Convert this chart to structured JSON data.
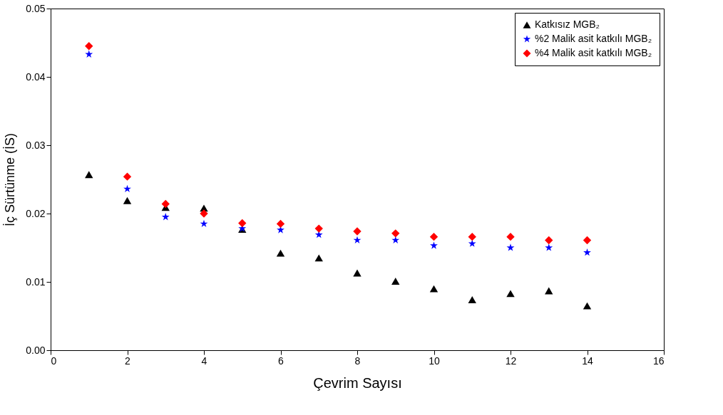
{
  "chart_data": {
    "type": "scatter",
    "xlabel": "Çevrim Sayısı",
    "ylabel": "İç Sürtünme (İS)",
    "x": [
      1,
      2,
      3,
      4,
      5,
      6,
      7,
      8,
      9,
      10,
      11,
      12,
      13,
      14
    ],
    "series": [
      {
        "name": "Katkısız MGB₂",
        "color": "#000000",
        "marker": "triangle",
        "values": [
          0.0257,
          0.0219,
          0.0209,
          0.0208,
          0.0177,
          0.0142,
          0.0135,
          0.0113,
          0.0101,
          0.009,
          0.0074,
          0.0083,
          0.0087,
          0.0065
        ]
      },
      {
        "name": "%2 Malik asit katkılı MGB₂",
        "color": "#0000ff",
        "marker": "star",
        "values": [
          0.0433,
          0.0236,
          0.0195,
          0.0185,
          0.0178,
          0.0176,
          0.0169,
          0.0161,
          0.0161,
          0.0153,
          0.0156,
          0.015,
          0.015,
          0.0143
        ]
      },
      {
        "name": "%4 Malik asit katkılı MGB₂",
        "color": "#ff0000",
        "marker": "diamond",
        "values": [
          0.0445,
          0.0254,
          0.0214,
          0.02,
          0.0186,
          0.0185,
          0.0178,
          0.0174,
          0.0171,
          0.0166,
          0.0166,
          0.0166,
          0.0161,
          0.0161
        ]
      }
    ],
    "xlim": [
      0,
      16
    ],
    "xticks": [
      0,
      2,
      4,
      6,
      8,
      10,
      12,
      14,
      16
    ],
    "ylim": [
      0,
      0.05
    ],
    "yticks": [
      {
        "value": 0,
        "label": "0.00"
      },
      0.01,
      0.02,
      0.03,
      0.04,
      0.05
    ],
    "grid": false,
    "legend": "top right"
  }
}
